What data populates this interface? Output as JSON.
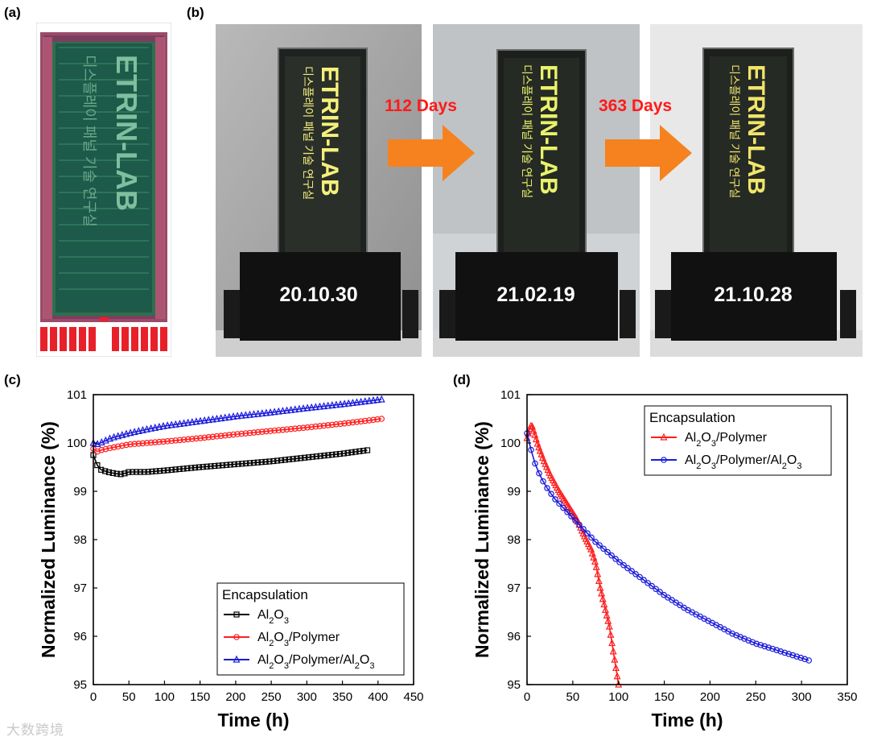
{
  "panels": {
    "a": "(a)",
    "b": "(b)",
    "c": "(c)",
    "d": "(d)"
  },
  "display_text": {
    "brand": "ETRIN-LAB",
    "korean_line": "디스플레이 패널 기술 연구실"
  },
  "photos": [
    {
      "date": "20.10.30"
    },
    {
      "date": "21.02.19"
    },
    {
      "date": "21.10.28"
    }
  ],
  "arrows": [
    {
      "label": "112 Days"
    },
    {
      "label": "363 Days"
    }
  ],
  "colors": {
    "black_series": "#000000",
    "red_series": "#ff1f1f",
    "blue_series": "#1a1adb",
    "arrow": "#f5821f",
    "arrow_text": "#ff1a1a"
  },
  "watermark": "大数跨境",
  "chart_data": [
    {
      "id": "c",
      "type": "scatter",
      "title": "",
      "xlabel": "Time (h)",
      "ylabel": "Normalized Luminance (%)",
      "xlim": [
        0,
        450
      ],
      "ylim": [
        95,
        101
      ],
      "xticks": [
        0,
        50,
        100,
        150,
        200,
        250,
        300,
        350,
        400,
        450
      ],
      "yticks": [
        95,
        96,
        97,
        98,
        99,
        100,
        101
      ],
      "legend": {
        "title": "Encapsulation",
        "position": "bottom-right"
      },
      "series": [
        {
          "name": "Al2O3",
          "color": "#000000",
          "marker": "square",
          "x": [
            0,
            5,
            10,
            20,
            30,
            40,
            50,
            75,
            100,
            150,
            200,
            250,
            300,
            350,
            385
          ],
          "y": [
            99.75,
            99.55,
            99.45,
            99.4,
            99.37,
            99.35,
            99.4,
            99.4,
            99.43,
            99.5,
            99.56,
            99.62,
            99.7,
            99.78,
            99.85
          ]
        },
        {
          "name": "Al2O3/Polymer",
          "color": "#ff1f1f",
          "marker": "circle",
          "x": [
            0,
            5,
            10,
            25,
            50,
            75,
            100,
            150,
            200,
            250,
            300,
            350,
            405
          ],
          "y": [
            99.88,
            99.82,
            99.85,
            99.9,
            99.97,
            100.0,
            100.03,
            100.1,
            100.18,
            100.25,
            100.32,
            100.4,
            100.5
          ]
        },
        {
          "name": "Al2O3/Polymer/Al2O3",
          "color": "#1a1adb",
          "marker": "triangle",
          "x": [
            0,
            5,
            10,
            25,
            50,
            75,
            100,
            150,
            200,
            250,
            300,
            350,
            405
          ],
          "y": [
            100.0,
            99.97,
            100.0,
            100.1,
            100.2,
            100.28,
            100.35,
            100.45,
            100.55,
            100.63,
            100.72,
            100.8,
            100.9
          ]
        }
      ]
    },
    {
      "id": "d",
      "type": "scatter",
      "title": "",
      "xlabel": "Time (h)",
      "ylabel": "Normalized Luminance (%)",
      "xlim": [
        0,
        350
      ],
      "ylim": [
        95,
        101
      ],
      "xticks": [
        0,
        50,
        100,
        150,
        200,
        250,
        300,
        350
      ],
      "yticks": [
        95,
        96,
        97,
        98,
        99,
        100,
        101
      ],
      "legend": {
        "title": "Encapsulation",
        "position": "top-right"
      },
      "series": [
        {
          "name": "Al2O3/Polymer",
          "color": "#ff1f1f",
          "marker": "triangle",
          "x": [
            0,
            3,
            5,
            8,
            12,
            18,
            25,
            35,
            45,
            55,
            62,
            70,
            75,
            80,
            85,
            90,
            95,
            100
          ],
          "y": [
            100.1,
            100.3,
            100.38,
            100.2,
            99.95,
            99.65,
            99.35,
            99.0,
            98.7,
            98.4,
            98.1,
            97.8,
            97.5,
            97.0,
            96.6,
            96.2,
            95.6,
            95.0
          ]
        },
        {
          "name": "Al2O3/Polymer/Al2O3",
          "color": "#1a1adb",
          "marker": "circle",
          "x": [
            0,
            3,
            6,
            10,
            15,
            20,
            30,
            40,
            50,
            60,
            75,
            100,
            125,
            150,
            175,
            200,
            225,
            250,
            275,
            300,
            308
          ],
          "y": [
            100.2,
            99.95,
            99.75,
            99.5,
            99.3,
            99.12,
            98.85,
            98.65,
            98.45,
            98.25,
            97.95,
            97.55,
            97.2,
            96.85,
            96.55,
            96.3,
            96.05,
            95.85,
            95.7,
            95.55,
            95.5
          ]
        }
      ]
    }
  ]
}
